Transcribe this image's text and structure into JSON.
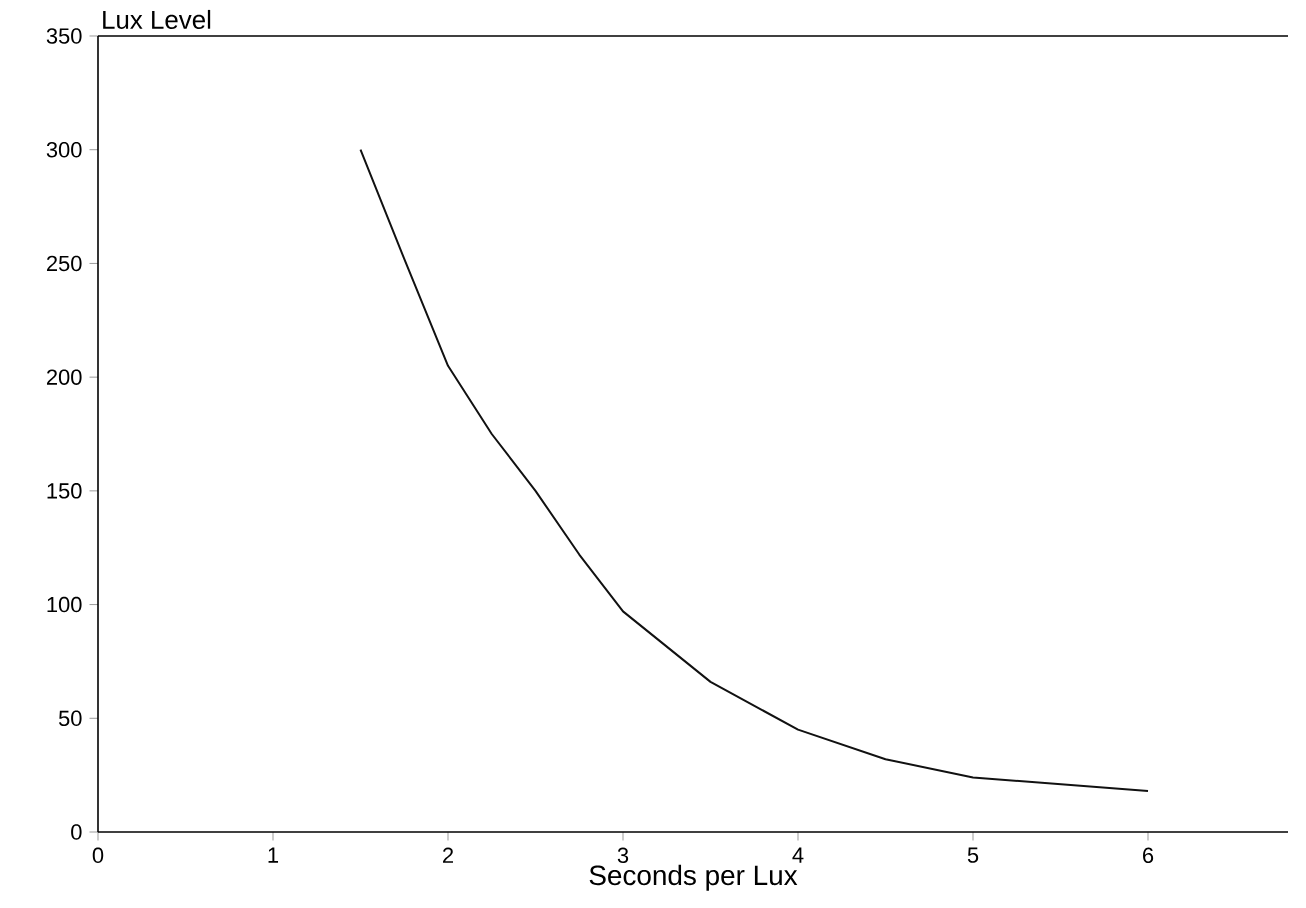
{
  "chart_data": {
    "type": "line",
    "xlabel": "Seconds per Lux",
    "ylabel": "Lux Level",
    "x": [
      1.5,
      1.75,
      2,
      2.25,
      2.5,
      2.75,
      3,
      3.5,
      4,
      4.5,
      5,
      5.5,
      6
    ],
    "values": [
      300,
      252,
      205,
      175,
      150,
      122,
      97,
      66,
      45,
      32,
      24,
      21,
      18
    ],
    "color": "#111111",
    "xlim": [
      0,
      6.8
    ],
    "ylim": [
      0,
      350
    ],
    "xticks": [
      0,
      1,
      2,
      3,
      4,
      5,
      6
    ],
    "yticks": [
      0,
      50,
      100,
      150,
      200,
      250,
      300,
      350
    ],
    "grid": false,
    "marker": "none",
    "line_style": "solid"
  }
}
